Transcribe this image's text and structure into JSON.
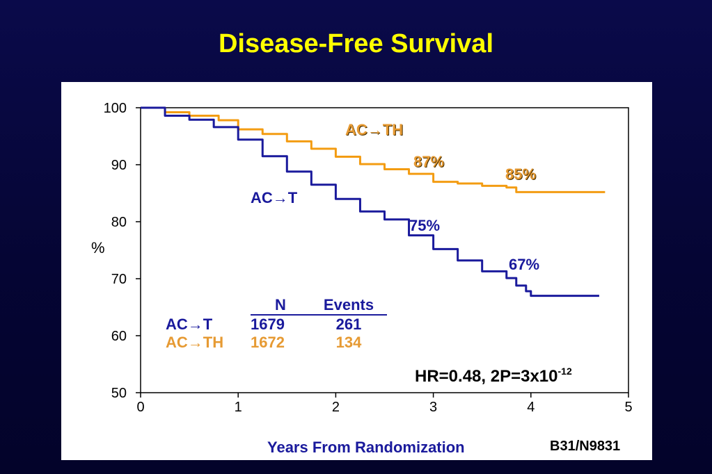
{
  "slide": {
    "title": "Disease-Free Survival",
    "source_label": "B31/N9831",
    "hr_text": "HR=0.48, 2P=3x10",
    "hr_exponent": "-12"
  },
  "legend_table": {
    "header_n": "N",
    "header_events": "Events",
    "rows": [
      {
        "arm": "AC→T",
        "n": "1679",
        "events": "261",
        "color": "#1a1a9c"
      },
      {
        "arm": "AC→TH",
        "n": "1672",
        "events": "134",
        "color": "#e69a33"
      }
    ]
  },
  "chart_data": {
    "type": "line",
    "title": "Disease-Free Survival",
    "xlabel": "Years From Randomization",
    "ylabel": "%",
    "xlim": [
      0,
      5
    ],
    "ylim": [
      50,
      100
    ],
    "xticks": [
      "0",
      "1",
      "2",
      "3",
      "4",
      "5"
    ],
    "yticks": [
      "50",
      "60",
      "70",
      "80",
      "90",
      "100"
    ],
    "grid": false,
    "series": [
      {
        "name": "AC→TH",
        "color": "#f39c12",
        "x": [
          0,
          0.25,
          0.5,
          0.8,
          1.0,
          1.25,
          1.5,
          1.75,
          2.0,
          2.25,
          2.5,
          2.75,
          3.0,
          3.25,
          3.5,
          3.75,
          3.85,
          4.0,
          4.5,
          4.76
        ],
        "y": [
          100,
          99.2,
          98.6,
          97.8,
          96.2,
          95.4,
          94.1,
          92.8,
          91.4,
          90.1,
          89.2,
          88.4,
          87.0,
          86.7,
          86.3,
          86.0,
          85.2,
          85.2,
          85.2,
          85.2
        ]
      },
      {
        "name": "AC→T",
        "color": "#1a1a9c",
        "x": [
          0,
          0.25,
          0.5,
          0.75,
          1.0,
          1.25,
          1.5,
          1.75,
          2.0,
          2.25,
          2.5,
          2.75,
          3.0,
          3.25,
          3.5,
          3.75,
          3.85,
          3.95,
          4.0,
          4.7
        ],
        "y": [
          100,
          98.6,
          97.9,
          96.6,
          94.4,
          91.5,
          88.8,
          86.5,
          84.0,
          81.8,
          80.4,
          77.6,
          75.2,
          73.2,
          71.3,
          70.1,
          68.8,
          67.8,
          67.0,
          67.0
        ]
      }
    ],
    "annotations": [
      {
        "text": "AC→TH",
        "color": "#e69a33"
      },
      {
        "text": "87%",
        "color": "#e69a33"
      },
      {
        "text": "85%",
        "color": "#e69a33"
      },
      {
        "text": "AC→T",
        "color": "#1a1a9c"
      },
      {
        "text": "75%",
        "color": "#1a1a9c"
      },
      {
        "text": "67%",
        "color": "#1a1a9c"
      }
    ]
  }
}
